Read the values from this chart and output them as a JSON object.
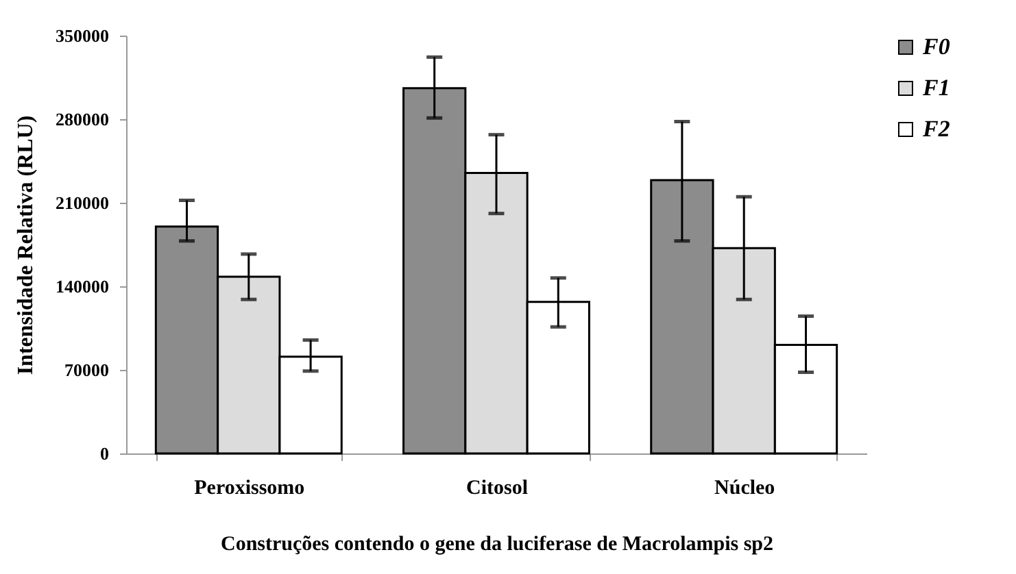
{
  "chart_data": {
    "type": "bar",
    "xlabel": "Construções contendo o gene da luciferase de Macrolampis sp2",
    "ylabel": "Intensidade Relativa (RLU)",
    "categories": [
      "Peroxissomo",
      "Citosol",
      "Núcleo"
    ],
    "series": [
      {
        "name": "F0",
        "color": "#8c8c8c",
        "values": [
          190000,
          306000,
          229000
        ],
        "errors": [
          [
            178000,
            212000
          ],
          [
            281000,
            332000
          ],
          [
            178000,
            278000
          ]
        ]
      },
      {
        "name": "F1",
        "color": "#dcdcdc",
        "values": [
          148000,
          235000,
          172000
        ],
        "errors": [
          [
            129000,
            167000
          ],
          [
            201000,
            267000
          ],
          [
            129000,
            215000
          ]
        ]
      },
      {
        "name": "F2",
        "color": "#ffffff",
        "values": [
          81000,
          127000,
          91000
        ],
        "errors": [
          [
            69000,
            95000
          ],
          [
            106000,
            147000
          ],
          [
            68000,
            115000
          ]
        ]
      }
    ],
    "ylim": [
      0,
      350000
    ],
    "yticks": [
      0,
      70000,
      140000,
      210000,
      280000,
      350000
    ],
    "grid": false,
    "legend": "right"
  }
}
